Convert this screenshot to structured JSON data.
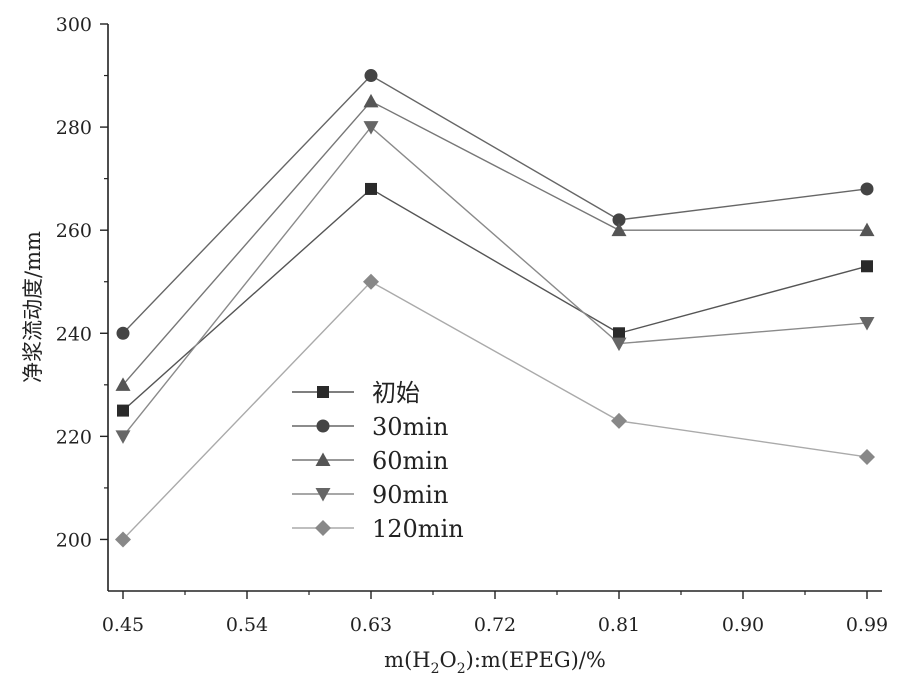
{
  "chart_data": {
    "type": "line",
    "x": [
      0.45,
      0.63,
      0.81,
      0.99
    ],
    "xlabel_parts": [
      "m(H",
      "2",
      "O",
      "2",
      "):m(EPEG)/%"
    ],
    "ylabel": "净浆流动度/mm",
    "xlim": [
      0.45,
      0.99
    ],
    "ylim": [
      190,
      300
    ],
    "x_ticks": [
      0.45,
      0.54,
      0.63,
      0.72,
      0.81,
      0.9,
      0.99
    ],
    "x_tick_labels": [
      "0.45",
      "0.54",
      "0.63",
      "0.72",
      "0.81",
      "0.90",
      "0.99"
    ],
    "y_ticks": [
      200,
      220,
      240,
      260,
      280,
      300
    ],
    "y_tick_labels": [
      "200",
      "220",
      "240",
      "260",
      "280",
      "300"
    ],
    "grid": false,
    "legend_position": "lower-center",
    "series": [
      {
        "name": "初始",
        "values": [
          225,
          268,
          240,
          253
        ],
        "marker": "square",
        "color": "#2a2a2a",
        "line_color": "#555555"
      },
      {
        "name": "30min",
        "values": [
          240,
          290,
          262,
          268
        ],
        "marker": "circle",
        "color": "#444444",
        "line_color": "#666666"
      },
      {
        "name": "60min",
        "values": [
          230,
          285,
          260,
          260
        ],
        "marker": "triangle-up",
        "color": "#555555",
        "line_color": "#777777"
      },
      {
        "name": "90min",
        "values": [
          220,
          280,
          238,
          242
        ],
        "marker": "triangle-down",
        "color": "#666666",
        "line_color": "#8a8a8a"
      },
      {
        "name": "120min",
        "values": [
          200,
          250,
          223,
          216
        ],
        "marker": "diamond",
        "color": "#888888",
        "line_color": "#aaaaaa"
      }
    ]
  }
}
